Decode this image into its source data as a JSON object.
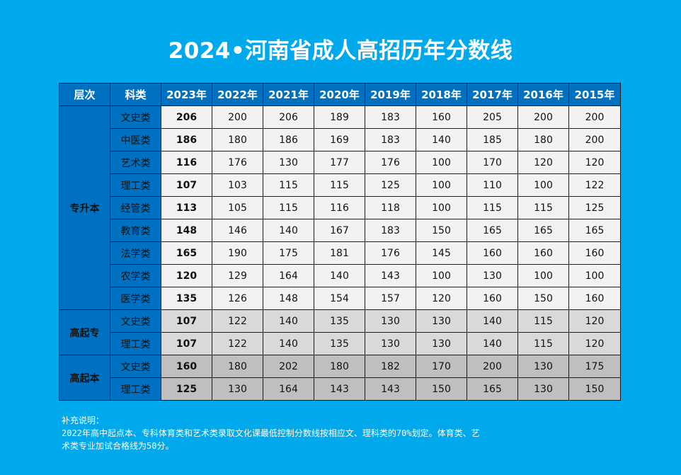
{
  "title": "2024•河南省成人高招历年分数线",
  "header": [
    "层次",
    "科类",
    "2023年",
    "2022年",
    "2021年",
    "2020年",
    "2019年",
    "2018年",
    "2017年",
    "2016年",
    "2015年"
  ],
  "groups": [
    {
      "level": "专升本",
      "rows": [
        {
          "subject": "文史类",
          "scores": [
            "206",
            "200",
            "206",
            "189",
            "183",
            "160",
            "205",
            "200",
            "200"
          ]
        },
        {
          "subject": "中医类",
          "scores": [
            "186",
            "180",
            "186",
            "169",
            "183",
            "140",
            "185",
            "180",
            "200"
          ]
        },
        {
          "subject": "艺术类",
          "scores": [
            "116",
            "176",
            "130",
            "177",
            "176",
            "100",
            "170",
            "120",
            "120"
          ]
        },
        {
          "subject": "理工类",
          "scores": [
            "107",
            "103",
            "115",
            "115",
            "125",
            "100",
            "110",
            "100",
            "122"
          ]
        },
        {
          "subject": "经管类",
          "scores": [
            "113",
            "105",
            "115",
            "116",
            "118",
            "100",
            "115",
            "115",
            "125"
          ]
        },
        {
          "subject": "教育类",
          "scores": [
            "148",
            "146",
            "140",
            "167",
            "183",
            "150",
            "165",
            "165",
            "165"
          ]
        },
        {
          "subject": "法学类",
          "scores": [
            "165",
            "190",
            "175",
            "181",
            "176",
            "145",
            "160",
            "160",
            "160"
          ]
        },
        {
          "subject": "农学类",
          "scores": [
            "120",
            "129",
            "164",
            "140",
            "143",
            "100",
            "130",
            "100",
            "100"
          ]
        },
        {
          "subject": "医学类",
          "scores": [
            "135",
            "126",
            "148",
            "154",
            "157",
            "120",
            "160",
            "150",
            "160"
          ]
        }
      ]
    },
    {
      "level": "高起专",
      "rows": [
        {
          "subject": "文史类",
          "scores": [
            "107",
            "122",
            "140",
            "135",
            "130",
            "130",
            "140",
            "115",
            "120"
          ]
        },
        {
          "subject": "理工类",
          "scores": [
            "107",
            "122",
            "140",
            "135",
            "130",
            "130",
            "140",
            "115",
            "120"
          ]
        }
      ]
    },
    {
      "level": "高起本",
      "rows": [
        {
          "subject": "文史类",
          "scores": [
            "160",
            "180",
            "202",
            "180",
            "182",
            "170",
            "200",
            "130",
            "175"
          ]
        },
        {
          "subject": "理工类",
          "scores": [
            "125",
            "130",
            "164",
            "143",
            "143",
            "150",
            "165",
            "130",
            "150"
          ]
        }
      ]
    }
  ],
  "note": {
    "heading": "补充说明：",
    "line1": "2022年高中起点本、专科体育类和艺术类录取文化课最低控制分数线按相应文、理科类的70%划定。体育类、艺",
    "line2": "术类专业加试合格线为50分。"
  }
}
